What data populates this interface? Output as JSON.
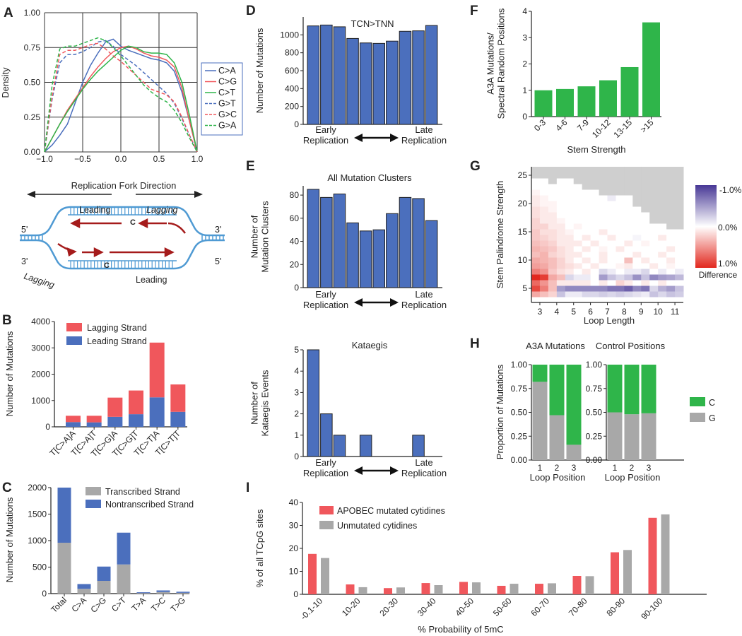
{
  "figure": {
    "panel_letters": [
      "A",
      "B",
      "C",
      "D",
      "E",
      "F",
      "G",
      "H",
      "I"
    ],
    "colors": {
      "blue": "#4b6fbd",
      "red": "#f0575c",
      "green": "#2fb54a",
      "gray": "#a8a8a8",
      "palered": "#f39a9e",
      "dark_red": "#a51b1b",
      "fork_blue": "#4f9ad3"
    },
    "diagram": {
      "title": "Replication Fork Direction",
      "leading_top": "Leading",
      "lagging_top": "Lagging",
      "lagging_bottom": "Lagging",
      "leading_bottom": "Leading",
      "c_top": "C",
      "c_bottom": "C",
      "five_left": "5'",
      "three_right": "3'",
      "three_left": "3'",
      "five_right": "5'"
    }
  },
  "chart_data": [
    {
      "id": "A",
      "type": "line",
      "ylabel": "Density",
      "xlim": [
        -1.0,
        1.0
      ],
      "ylim": [
        0.0,
        1.0
      ],
      "xticks": [
        "−1.0",
        "−0.5",
        "0.0",
        "0.5",
        "1.0"
      ],
      "yticks": [
        "0.00",
        "0.25",
        "0.50",
        "0.75",
        "1.00"
      ],
      "grid": true,
      "legend": "right",
      "x": [
        -1.0,
        -0.9,
        -0.8,
        -0.7,
        -0.6,
        -0.5,
        -0.4,
        -0.3,
        -0.2,
        -0.1,
        0.0,
        0.1,
        0.2,
        0.3,
        0.4,
        0.5,
        0.6,
        0.7,
        0.8,
        0.9,
        1.0
      ],
      "series": [
        {
          "name": "C>A",
          "color": "#4b6fbd",
          "dash": false,
          "values": [
            0.0,
            0.05,
            0.12,
            0.2,
            0.35,
            0.5,
            0.62,
            0.71,
            0.79,
            0.81,
            0.76,
            0.73,
            0.71,
            0.69,
            0.67,
            0.66,
            0.64,
            0.58,
            0.43,
            0.22,
            0.0
          ]
        },
        {
          "name": "C>G",
          "color": "#f0575c",
          "dash": false,
          "values": [
            0.0,
            0.1,
            0.2,
            0.3,
            0.38,
            0.46,
            0.54,
            0.61,
            0.67,
            0.72,
            0.75,
            0.76,
            0.74,
            0.71,
            0.69,
            0.68,
            0.66,
            0.61,
            0.46,
            0.22,
            0.0
          ]
        },
        {
          "name": "C>T",
          "color": "#2fb54a",
          "dash": false,
          "values": [
            0.0,
            0.1,
            0.2,
            0.29,
            0.37,
            0.45,
            0.52,
            0.58,
            0.63,
            0.68,
            0.73,
            0.76,
            0.75,
            0.72,
            0.71,
            0.71,
            0.7,
            0.64,
            0.5,
            0.26,
            0.0
          ]
        },
        {
          "name": "G>T",
          "color": "#4b6fbd",
          "dash": true,
          "values": [
            0.0,
            0.38,
            0.64,
            0.7,
            0.7,
            0.72,
            0.75,
            0.79,
            0.8,
            0.76,
            0.7,
            0.66,
            0.62,
            0.57,
            0.52,
            0.47,
            0.42,
            0.35,
            0.24,
            0.12,
            0.0
          ]
        },
        {
          "name": "G>C",
          "color": "#f0575c",
          "dash": true,
          "values": [
            0.0,
            0.4,
            0.7,
            0.73,
            0.73,
            0.75,
            0.77,
            0.78,
            0.74,
            0.69,
            0.65,
            0.6,
            0.55,
            0.5,
            0.45,
            0.43,
            0.41,
            0.36,
            0.25,
            0.12,
            0.0
          ]
        },
        {
          "name": "G>A",
          "color": "#2fb54a",
          "dash": true,
          "values": [
            0.0,
            0.48,
            0.74,
            0.76,
            0.76,
            0.78,
            0.8,
            0.82,
            0.8,
            0.75,
            0.69,
            0.62,
            0.55,
            0.48,
            0.43,
            0.39,
            0.36,
            0.3,
            0.21,
            0.1,
            0.0
          ]
        }
      ]
    },
    {
      "id": "B",
      "type": "bar",
      "stacked": true,
      "ylabel": "Number of Mutations",
      "ylim": [
        0,
        4000
      ],
      "yticks": [
        "0",
        "1000",
        "2000",
        "3000",
        "4000"
      ],
      "categories": [
        "T[C>A]A",
        "T[C>A]T",
        "T[C>G]A",
        "T[C>G]T",
        "T[C>T]A",
        "T[C>T]T"
      ],
      "series": [
        {
          "name": "Leading Strand",
          "color": "#4b6fbd",
          "values": [
            180,
            170,
            380,
            480,
            1120,
            570
          ]
        },
        {
          "name": "Lagging Strand",
          "color": "#f0575c",
          "values": [
            240,
            250,
            730,
            900,
            2080,
            1040
          ]
        }
      ],
      "legend_order": [
        "Lagging Strand",
        "Leading Strand"
      ]
    },
    {
      "id": "C",
      "type": "bar",
      "stacked": true,
      "ylabel": "Number of Mutations",
      "ylim": [
        0,
        2000
      ],
      "yticks": [
        "0",
        "500",
        "1000",
        "1500",
        "2000"
      ],
      "categories": [
        "Total",
        "C>A",
        "C>G",
        "C>T",
        "T>A",
        "T>C",
        "T>G"
      ],
      "series": [
        {
          "name": "Transcribed Strand",
          "color": "#a8a8a8",
          "values": [
            960,
            90,
            240,
            550,
            10,
            30,
            15
          ]
        },
        {
          "name": "Nontranscribed Strand",
          "color": "#4b6fbd",
          "values": [
            1040,
            90,
            270,
            600,
            15,
            30,
            20
          ]
        }
      ]
    },
    {
      "id": "D",
      "type": "bar",
      "title": "TCN>TNN",
      "ylabel": "Number of Mutations",
      "ylim": [
        0,
        1200
      ],
      "yticks": [
        "0",
        "200",
        "400",
        "600",
        "800",
        "1000"
      ],
      "values": [
        1100,
        1110,
        1090,
        960,
        910,
        905,
        930,
        1040,
        1045,
        1105
      ],
      "left_note": "Early\nReplication",
      "right_note": "Late\nReplication"
    },
    {
      "id": "E1",
      "type": "bar",
      "title": "All Mutation Clusters",
      "ylabel": "Number of\nMutation Clusters",
      "ylim": [
        0,
        88
      ],
      "yticks": [
        "0",
        "20",
        "40",
        "60",
        "80"
      ],
      "values": [
        85,
        78,
        81,
        56,
        49,
        50,
        64,
        78,
        77,
        58
      ],
      "left_note": "Early\nReplication",
      "right_note": "Late\nReplication"
    },
    {
      "id": "E2",
      "type": "bar",
      "title": "Kataegis",
      "ylabel": "Number of\nKataegis Events",
      "ylim": [
        0,
        5
      ],
      "yticks": [
        "0",
        "1",
        "2",
        "3",
        "4",
        "5"
      ],
      "values": [
        5,
        2,
        1,
        0,
        1,
        0,
        0,
        0,
        1,
        0
      ],
      "left_note": "Early\nReplication",
      "right_note": "Late\nReplication"
    },
    {
      "id": "F",
      "type": "bar",
      "xlabel": "Stem Strength",
      "ylabel": "A3A Mutations/\nSpectral Random Positions",
      "ylim": [
        0,
        4
      ],
      "yticks": [
        "0",
        "1",
        "2",
        "3",
        "4"
      ],
      "categories": [
        "0-3",
        "4-6",
        "7-9",
        "10-12",
        "13-15",
        ">15"
      ],
      "values": [
        1.0,
        1.05,
        1.15,
        1.38,
        1.88,
        3.58
      ]
    },
    {
      "id": "G",
      "type": "heatmap",
      "xlabel": "Loop Length",
      "ylabel": "Stem Palindrome Strength",
      "xticks": [
        "3",
        "4",
        "5",
        "6",
        "7",
        "8",
        "9",
        "10",
        "11"
      ],
      "yticks": [
        "5",
        "10",
        "15",
        "20",
        "25"
      ],
      "ylim": [
        3,
        26
      ],
      "colorbar": {
        "labels": [
          "-1.0%",
          "0.0%",
          "1.0%"
        ],
        "title": "Difference",
        "range": [
          -1.0,
          1.0
        ]
      },
      "rows_bottom_to_top_strength_3_to_26": [
        [
          0.0,
          0.0,
          0.0,
          0.0,
          0.0,
          0.0,
          0.0,
          0.0,
          0.0,
          0.0,
          0.0,
          0.0,
          0.0,
          0.0,
          0.0,
          0.0,
          0.0,
          0.0
        ],
        [
          0.4,
          0.3,
          0.2,
          -0.3,
          -0.1,
          -0.1,
          -0.2,
          -0.2,
          -0.25,
          -0.2,
          -0.25,
          -0.2,
          -0.15,
          -0.1,
          -0.3,
          -0.2,
          -0.3,
          -0.25
        ],
        [
          0.85,
          0.6,
          0.3,
          -0.5,
          -0.6,
          -0.6,
          -0.6,
          -0.6,
          -0.6,
          -0.7,
          -0.7,
          -0.8,
          -0.6,
          -0.7,
          -0.2,
          -0.4,
          -0.5,
          -0.3
        ],
        [
          0.7,
          0.5,
          0.3,
          0.1,
          0.1,
          0.1,
          0.1,
          0.0,
          0.1,
          0.0,
          0.2,
          0.1,
          0.0,
          0.1,
          0.0,
          0.1,
          0.0,
          0.0
        ],
        [
          1.0,
          0.9,
          0.4,
          0.3,
          -0.2,
          -0.1,
          -0.1,
          0.0,
          -0.5,
          -0.3,
          -0.2,
          -0.3,
          -0.55,
          -0.3,
          -0.6,
          -0.5,
          -0.45,
          -0.35
        ],
        [
          0.6,
          0.5,
          0.25,
          0.15,
          0.1,
          0.0,
          0.1,
          0.0,
          -0.2,
          -0.1,
          0.0,
          -0.1,
          -0.1,
          -0.2,
          0.0,
          -0.1,
          0.0,
          -0.1
        ],
        [
          0.45,
          0.4,
          0.3,
          0.2,
          0.15,
          0.1,
          0.0,
          0.1,
          0.0,
          0.0,
          0.05,
          0.1,
          0.0,
          0.0,
          0.1,
          0.0,
          0.05,
          0.0
        ],
        [
          0.4,
          0.35,
          0.3,
          0.2,
          0.1,
          0.0,
          0.1,
          0.0,
          0.1,
          0.0,
          0.0,
          0.3,
          0.0,
          0.1,
          0.0,
          0.0,
          0.1,
          0.0
        ],
        [
          0.3,
          0.35,
          0.2,
          0.15,
          0.1,
          0.1,
          0.0,
          0.0,
          0.1,
          0.0,
          0.0,
          0.0,
          0.1,
          0.0,
          0.0,
          0.1,
          0.0,
          0.0
        ],
        [
          0.35,
          0.3,
          0.25,
          0.15,
          0.1,
          0.0,
          0.1,
          0.0,
          0.05,
          0.0,
          0.1,
          0.0,
          0.0,
          0.0,
          0.0,
          0.0,
          0.1,
          0.0
        ],
        [
          0.3,
          0.25,
          0.2,
          0.1,
          0.1,
          0.1,
          0.0,
          0.1,
          0.0,
          0.0,
          0.0,
          0.1,
          0.0,
          0.05,
          0.0,
          0.0,
          0.0,
          0.0
        ],
        [
          0.25,
          0.2,
          0.15,
          0.1,
          0.1,
          0.0,
          0.1,
          0.0,
          0.0,
          0.1,
          0.0,
          0.0,
          -0.05,
          0.0,
          0.0,
          0.1,
          0.0,
          0.0
        ],
        [
          0.25,
          0.15,
          0.15,
          0.1,
          0.05,
          0.0,
          0.0,
          0.0,
          0.1,
          0.0,
          0.0,
          0.0,
          0.0,
          0.0,
          0.0,
          0.0,
          0.0,
          0.0
        ],
        [
          0.2,
          0.2,
          0.1,
          0.1,
          0.0,
          0.05,
          0.0,
          0.0,
          0.0,
          0.0,
          0.0,
          0.0,
          0.0,
          0.0,
          0.0,
          0.0,
          null,
          null
        ],
        [
          0.2,
          0.1,
          0.1,
          0.05,
          0.0,
          0.0,
          0.0,
          0.0,
          0.0,
          0.0,
          0.0,
          0.0,
          0.0,
          0.0,
          null,
          null,
          null,
          null
        ],
        [
          0.15,
          0.1,
          0.1,
          0.0,
          0.0,
          0.0,
          0.0,
          0.0,
          0.0,
          0.0,
          0.0,
          0.0,
          0.0,
          0.0,
          null,
          null,
          null,
          null
        ],
        [
          0.15,
          0.1,
          0.05,
          0.0,
          0.0,
          0.0,
          0.0,
          0.0,
          0.0,
          0.0,
          0.0,
          0.0,
          0.0,
          null,
          null,
          null,
          null,
          null
        ],
        [
          0.1,
          0.05,
          0.05,
          0.0,
          0.0,
          0.0,
          0.0,
          0.0,
          0.0,
          0.0,
          0.0,
          0.0,
          null,
          null,
          null,
          null,
          null,
          null
        ],
        [
          0.1,
          0.05,
          0.0,
          0.0,
          0.0,
          0.0,
          0.0,
          0.0,
          0.0,
          -0.1,
          0.0,
          0.0,
          null,
          null,
          null,
          null,
          null,
          null
        ],
        [
          0.05,
          0.0,
          0.0,
          0.0,
          0.0,
          0.0,
          0.0,
          0.0,
          null,
          null,
          null,
          null,
          null,
          null,
          null,
          null,
          null,
          null
        ],
        [
          0.0,
          0.0,
          0.0,
          0.0,
          0.0,
          0.0,
          null,
          null,
          null,
          null,
          null,
          null,
          null,
          null,
          null,
          null,
          null,
          null
        ],
        [
          0.0,
          0.0,
          null,
          0.0,
          0.0,
          null,
          null,
          null,
          null,
          null,
          null,
          null,
          null,
          null,
          null,
          null,
          null,
          null
        ],
        [
          null,
          null,
          null,
          null,
          null,
          null,
          null,
          null,
          null,
          null,
          null,
          null,
          null,
          null,
          null,
          null,
          null,
          null
        ],
        [
          null,
          null,
          null,
          null,
          null,
          null,
          null,
          null,
          null,
          null,
          null,
          null,
          null,
          null,
          null,
          null,
          null,
          null
        ]
      ]
    },
    {
      "id": "H",
      "type": "bar",
      "stacked": true,
      "proportion": true,
      "ylabel": "Proportion of Mutations",
      "ylim": [
        0,
        1
      ],
      "yticks": [
        "0.00",
        "0.25",
        "0.50",
        "0.75",
        "1.00"
      ],
      "legend": [
        {
          "name": "C",
          "color": "#2fb54a"
        },
        {
          "name": "G",
          "color": "#a8a8a8"
        }
      ],
      "subplots": [
        {
          "title": "A3A Mutations",
          "xlabel": "Loop Position",
          "categories": [
            "1",
            "2",
            "3"
          ],
          "G": [
            0.82,
            0.47,
            0.16
          ]
        },
        {
          "title": "Control Positions",
          "xlabel": "Loop Position",
          "categories": [
            "1",
            "2",
            "3"
          ],
          "G": [
            0.5,
            0.48,
            0.49
          ]
        }
      ]
    },
    {
      "id": "I",
      "type": "bar",
      "xlabel": "% Probability of 5mC",
      "ylabel": "% of all TCpG sites",
      "ylim": [
        0,
        40
      ],
      "yticks": [
        "0",
        "10",
        "20",
        "30",
        "40"
      ],
      "categories": [
        "-0.1-10",
        "10-20",
        "20-30",
        "30-40",
        "40-50",
        "50-60",
        "60-70",
        "70-80",
        "80-90",
        "90-100"
      ],
      "series": [
        {
          "name": "APOBEC mutated cytidines",
          "color": "#f0575c",
          "values": [
            17.6,
            4.3,
            2.7,
            4.9,
            5.4,
            3.7,
            4.6,
            8.0,
            18.3,
            33.3
          ]
        },
        {
          "name": "Unmutated cytidines",
          "color": "#a8a8a8",
          "values": [
            15.8,
            3.1,
            3.0,
            4.0,
            5.2,
            4.6,
            4.8,
            7.9,
            19.3,
            34.8
          ]
        }
      ]
    }
  ]
}
